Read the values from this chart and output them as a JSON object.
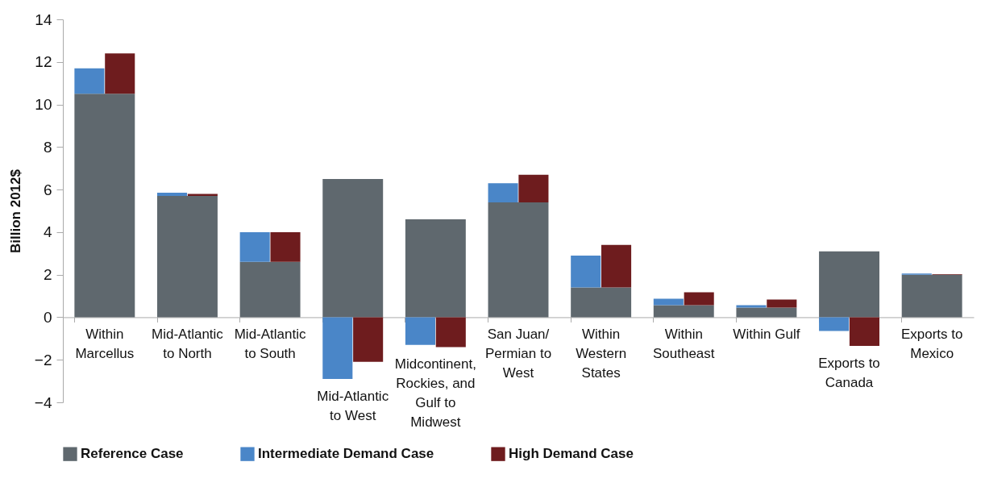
{
  "chart_data": {
    "type": "bar",
    "ylabel": "Billion 2012$",
    "legend": "bottom",
    "categories": [
      "Within Marcellus",
      "Mid-Atlantic to North",
      "Mid-Atlantic to South",
      "Mid-Atlantic to West",
      "Midcontinent, Rockies, and Gulf to Midwest",
      "San Juan/ Permian to West",
      "Within Western States",
      "Within Southeast",
      "Within Gulf",
      "Exports to Canada",
      "Exports to Mexico"
    ],
    "series": [
      {
        "name": "Reference Case",
        "color": "#5f686e",
        "values": [
          10.5,
          5.7,
          2.6,
          6.5,
          4.6,
          5.4,
          1.4,
          0.57,
          0.45,
          3.1,
          2.0
        ]
      },
      {
        "name": "Intermediate Demand Case",
        "color": "#4a86c8",
        "values": [
          1.2,
          0.15,
          1.4,
          -2.9,
          -1.3,
          0.9,
          1.5,
          0.3,
          0.12,
          -0.65,
          0.05
        ],
        "base": [
          10.5,
          5.7,
          2.6,
          0,
          0,
          5.4,
          1.4,
          0.57,
          0.45,
          0,
          2.0
        ]
      },
      {
        "name": "High Demand Case",
        "color": "#6e1c1e",
        "values": [
          1.9,
          0.1,
          1.4,
          -2.1,
          -1.4,
          1.3,
          2.0,
          0.6,
          0.38,
          -1.35,
          0.03
        ],
        "base": [
          10.5,
          5.7,
          2.6,
          0,
          0,
          5.4,
          1.4,
          0.57,
          0.45,
          0,
          2.0
        ]
      }
    ],
    "ylim": [
      -4,
      14
    ],
    "yticks": [
      -4,
      -2,
      0,
      2,
      4,
      6,
      8,
      10,
      12,
      14
    ]
  }
}
